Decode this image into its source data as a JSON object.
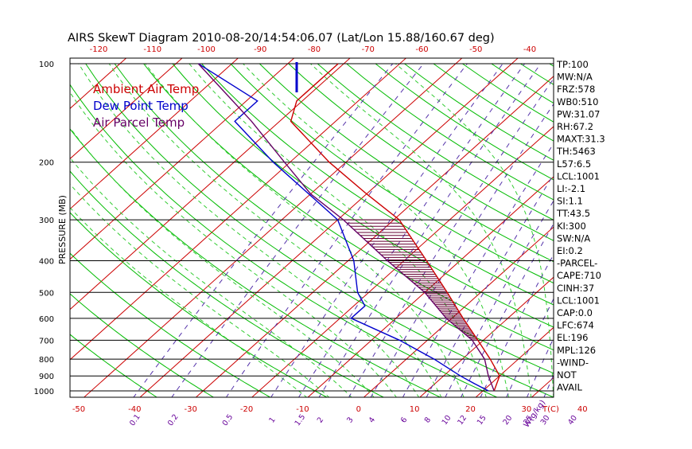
{
  "chart_data": {
    "type": "skewt",
    "title": "AIRS SkewT Diagram 2010-08-20/14:54:06.07 (Lat/Lon 15.88/160.67 deg)",
    "ylabel": "PRESSURE (MB)",
    "xlabel_bottom": "T(C)",
    "mixing_ratio_label": "W(g/kg)",
    "top_temperature_ticks": [
      -120,
      -110,
      -100,
      -90,
      -80,
      -70,
      -60,
      -50,
      -40
    ],
    "bottom_temperature_ticks": [
      -50,
      -40,
      -30,
      -20,
      -10,
      0,
      10,
      20,
      30,
      40
    ],
    "pressure_ticks": [
      100,
      200,
      300,
      400,
      500,
      600,
      700,
      800,
      900,
      1000
    ],
    "mixing_ratio_labels": [
      "0.1",
      "0.2",
      "0.5",
      "1",
      "1.5",
      "2",
      "3",
      "4",
      "6",
      "8",
      "10",
      "12",
      "15",
      "20",
      "25",
      "30",
      "40"
    ],
    "legend": [
      {
        "label": "Ambient Air Temp",
        "color": "#cc0000"
      },
      {
        "label": "Dew Point Temp",
        "color": "#0000cc"
      },
      {
        "label": "Air Parcel Temp",
        "color": "#660066"
      }
    ],
    "colors": {
      "isotherm": "#cc0000",
      "dry_adiabat": "#00bb00",
      "moist_adiabat": "#33cc33",
      "mixing_ratio": "#5533aa",
      "isobar": "#000000",
      "temp_line": "#cc0000",
      "dewpoint_line": "#0000cc",
      "parcel_line": "#660066",
      "tick_labels": "#cc0000",
      "mixing_labels": "#660099"
    },
    "series": [
      {
        "name": "Ambient Air Temp",
        "points": [
          {
            "p": 1000,
            "t": 22
          },
          {
            "p": 900,
            "t": 20
          },
          {
            "p": 800,
            "t": 15
          },
          {
            "p": 700,
            "t": 9
          },
          {
            "p": 600,
            "t": 2
          },
          {
            "p": 500,
            "t": -6
          },
          {
            "p": 400,
            "t": -16
          },
          {
            "p": 300,
            "t": -29
          },
          {
            "p": 250,
            "t": -40
          },
          {
            "p": 200,
            "t": -53
          },
          {
            "p": 150,
            "t": -68
          },
          {
            "p": 130,
            "t": -71
          },
          {
            "p": 100,
            "t": -71
          }
        ]
      },
      {
        "name": "Dew Point Temp",
        "points": [
          {
            "p": 1000,
            "t": 21
          },
          {
            "p": 950,
            "t": 17
          },
          {
            "p": 900,
            "t": 13
          },
          {
            "p": 800,
            "t": 5
          },
          {
            "p": 700,
            "t": -5
          },
          {
            "p": 600,
            "t": -18
          },
          {
            "p": 550,
            "t": -18
          },
          {
            "p": 500,
            "t": -22
          },
          {
            "p": 400,
            "t": -29
          },
          {
            "p": 300,
            "t": -40
          },
          {
            "p": 200,
            "t": -63
          },
          {
            "p": 150,
            "t": -78
          },
          {
            "p": 130,
            "t": -78
          },
          {
            "p": 100,
            "t": -96
          }
        ]
      },
      {
        "name": "Air Parcel Temp",
        "points": [
          {
            "p": 1000,
            "t": 22
          },
          {
            "p": 900,
            "t": 18
          },
          {
            "p": 800,
            "t": 14
          },
          {
            "p": 700,
            "t": 8
          },
          {
            "p": 600,
            "t": -1
          },
          {
            "p": 500,
            "t": -10
          },
          {
            "p": 400,
            "t": -23
          },
          {
            "p": 300,
            "t": -39
          },
          {
            "p": 250,
            "t": -50
          },
          {
            "p": 200,
            "t": -61
          },
          {
            "p": 150,
            "t": -75
          },
          {
            "p": 100,
            "t": -96
          }
        ]
      }
    ],
    "indices": [
      "TP:100",
      "MW:N/A",
      "FRZ:578",
      "WB0:510",
      "PW:31.07",
      "RH:67.2",
      "MAXT:31.3",
      "TH:5463",
      "L57:6.5",
      "LCL:1001",
      "LI:-2.1",
      "SI:1.1",
      "TT:43.5",
      "KI:300",
      "SW:N/A",
      "EI:0.2",
      "-PARCEL-",
      "CAPE:710",
      "CINH:37",
      "LCL:1001",
      "CAP:0.0",
      "LFC:674",
      "EL:196",
      "MPL:126",
      "-WIND-",
      "NOT",
      "AVAIL"
    ]
  }
}
